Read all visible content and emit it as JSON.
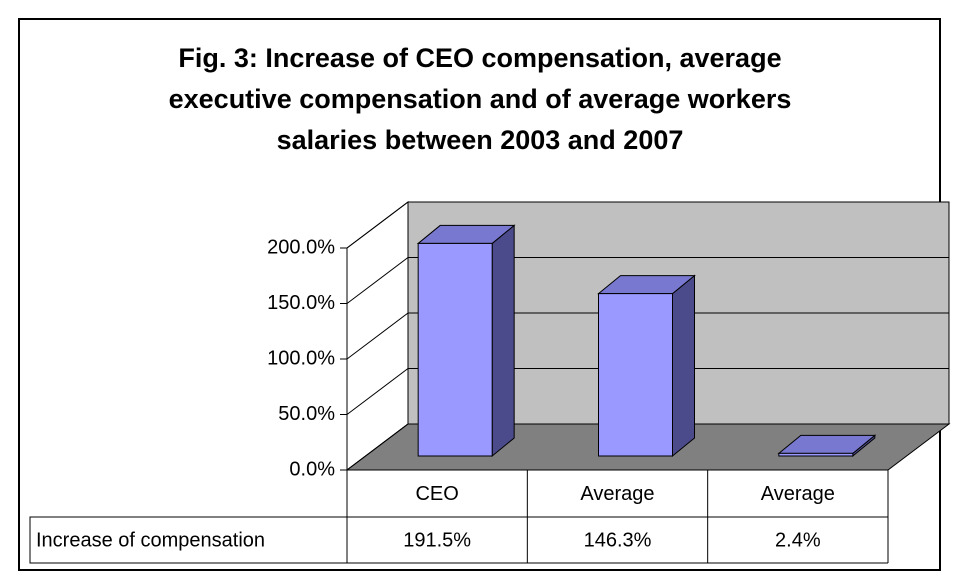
{
  "chart_data": {
    "type": "bar3d",
    "title": [
      "Fig. 3: Increase of CEO compensation, average",
      "executive compensation and of average workers",
      "salaries between 2003 and 2007"
    ],
    "categories": [
      "CEO",
      "Average",
      "Average"
    ],
    "series": [
      {
        "name": "Increase of compensation",
        "color": "#9999ff",
        "values": [
          191.5,
          146.3,
          2.4
        ],
        "value_labels": [
          "191.5%",
          "146.3%",
          "2.4%"
        ]
      }
    ],
    "ylim": [
      0,
      200
    ],
    "yticks": [
      {
        "value": 0,
        "label": "0.0%"
      },
      {
        "value": 50,
        "label": "50.0%"
      },
      {
        "value": 100,
        "label": "100.0%"
      },
      {
        "value": 150,
        "label": "150.0%"
      },
      {
        "value": 200,
        "label": "200.0%"
      }
    ],
    "grid": true
  }
}
